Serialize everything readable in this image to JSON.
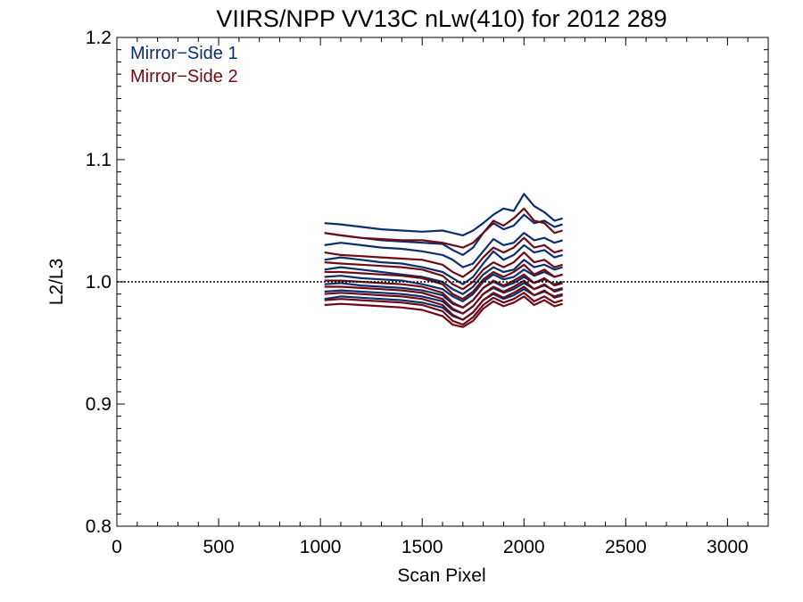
{
  "chart_data": {
    "type": "line",
    "title": "VIIRS/NPP VV13C nLw(410) for 2012 289",
    "xlabel": "Scan Pixel",
    "ylabel": "L2/L3",
    "xlim": [
      0,
      3200
    ],
    "ylim": [
      0.8,
      1.2
    ],
    "xticks": [
      0,
      500,
      1000,
      1500,
      2000,
      2500,
      3000
    ],
    "xtick_labels": [
      "0",
      "500",
      "1000",
      "1500",
      "2000",
      "2500",
      "3000"
    ],
    "yticks": [
      0.8,
      0.9,
      1.0,
      1.1,
      1.2
    ],
    "ytick_labels": [
      "0.8",
      "0.9",
      "1.0",
      "1.1",
      "1.2"
    ],
    "reference_line": 1.0,
    "legend_position": "top-left",
    "legend": [
      {
        "label": "Mirror−Side 1",
        "color": "#0b2f6e"
      },
      {
        "label": "Mirror−Side 2",
        "color": "#6e0b14"
      }
    ],
    "x": [
      1020,
      1100,
      1200,
      1300,
      1400,
      1500,
      1600,
      1650,
      1700,
      1750,
      1800,
      1850,
      1900,
      1950,
      2000,
      2050,
      2100,
      2150,
      2190
    ],
    "series": [
      {
        "group": 1,
        "color": "#0b2f6e",
        "values": [
          1.048,
          1.047,
          1.045,
          1.043,
          1.042,
          1.041,
          1.042,
          1.04,
          1.038,
          1.042,
          1.048,
          1.055,
          1.06,
          1.058,
          1.072,
          1.062,
          1.057,
          1.05,
          1.052
        ]
      },
      {
        "group": 1,
        "color": "#0b2f6e",
        "values": [
          1.04,
          1.038,
          1.036,
          1.034,
          1.033,
          1.032,
          1.031,
          1.026,
          1.022,
          1.028,
          1.04,
          1.048,
          1.043,
          1.046,
          1.055,
          1.048,
          1.05,
          1.045,
          1.047
        ]
      },
      {
        "group": 1,
        "color": "#0b2f6e",
        "values": [
          1.03,
          1.032,
          1.03,
          1.028,
          1.027,
          1.025,
          1.022,
          1.018,
          1.012,
          1.015,
          1.025,
          1.035,
          1.03,
          1.032,
          1.04,
          1.034,
          1.036,
          1.032,
          1.034
        ]
      },
      {
        "group": 1,
        "color": "#0b2f6e",
        "values": [
          1.018,
          1.02,
          1.018,
          1.016,
          1.015,
          1.012,
          1.008,
          1.003,
          0.998,
          1.004,
          1.015,
          1.025,
          1.018,
          1.022,
          1.03,
          1.024,
          1.026,
          1.02,
          1.022
        ]
      },
      {
        "group": 1,
        "color": "#0b2f6e",
        "values": [
          1.01,
          1.012,
          1.01,
          1.008,
          1.006,
          1.004,
          1.0,
          0.994,
          0.99,
          0.996,
          1.006,
          1.012,
          1.008,
          1.01,
          1.018,
          1.012,
          1.014,
          1.01,
          1.012
        ]
      },
      {
        "group": 1,
        "color": "#0b2f6e",
        "values": [
          1.004,
          1.005,
          1.003,
          1.002,
          1.001,
          0.998,
          0.994,
          0.988,
          0.984,
          0.99,
          1.0,
          1.006,
          1.002,
          1.004,
          1.01,
          1.005,
          1.008,
          1.004,
          1.006
        ]
      },
      {
        "group": 1,
        "color": "#0b2f6e",
        "values": [
          0.998,
          0.999,
          0.997,
          0.996,
          0.995,
          0.993,
          0.989,
          0.982,
          0.979,
          0.985,
          0.995,
          1.0,
          0.996,
          0.999,
          1.004,
          0.999,
          1.002,
          0.998,
          1.0
        ]
      },
      {
        "group": 1,
        "color": "#0b2f6e",
        "values": [
          0.992,
          0.993,
          0.992,
          0.991,
          0.99,
          0.988,
          0.984,
          0.977,
          0.974,
          0.98,
          0.99,
          0.995,
          0.991,
          0.994,
          0.999,
          0.994,
          0.997,
          0.993,
          0.995
        ]
      },
      {
        "group": 1,
        "color": "#0b2f6e",
        "values": [
          0.986,
          0.988,
          0.987,
          0.986,
          0.985,
          0.983,
          0.979,
          0.972,
          0.969,
          0.975,
          0.985,
          0.99,
          0.986,
          0.989,
          0.994,
          0.989,
          0.992,
          0.988,
          0.99
        ]
      },
      {
        "group": 2,
        "color": "#6e0b14",
        "values": [
          1.04,
          1.038,
          1.036,
          1.035,
          1.034,
          1.034,
          1.032,
          1.03,
          1.028,
          1.032,
          1.04,
          1.05,
          1.046,
          1.052,
          1.06,
          1.05,
          1.048,
          1.04,
          1.042
        ]
      },
      {
        "group": 2,
        "color": "#6e0b14",
        "values": [
          1.024,
          1.022,
          1.021,
          1.02,
          1.019,
          1.018,
          1.014,
          1.008,
          1.004,
          1.01,
          1.02,
          1.028,
          1.024,
          1.028,
          1.036,
          1.028,
          1.03,
          1.024,
          1.026
        ]
      },
      {
        "group": 2,
        "color": "#6e0b14",
        "values": [
          1.016,
          1.015,
          1.014,
          1.013,
          1.012,
          1.01,
          1.005,
          0.998,
          0.994,
          1.0,
          1.01,
          1.016,
          1.012,
          1.016,
          1.024,
          1.016,
          1.018,
          1.012,
          1.014
        ]
      },
      {
        "group": 2,
        "color": "#6e0b14",
        "values": [
          1.008,
          1.008,
          1.007,
          1.006,
          1.005,
          1.003,
          0.998,
          0.99,
          0.986,
          0.992,
          1.002,
          1.008,
          1.004,
          1.008,
          1.014,
          1.006,
          1.01,
          1.004,
          1.006
        ]
      },
      {
        "group": 2,
        "color": "#6e0b14",
        "values": [
          1.001,
          1.001,
          1.0,
          0.999,
          0.998,
          0.996,
          0.991,
          0.983,
          0.979,
          0.985,
          0.995,
          1.001,
          0.997,
          1.001,
          1.006,
          0.999,
          1.003,
          0.997,
          0.999
        ]
      },
      {
        "group": 2,
        "color": "#6e0b14",
        "values": [
          0.996,
          0.996,
          0.995,
          0.994,
          0.993,
          0.991,
          0.986,
          0.978,
          0.974,
          0.98,
          0.99,
          0.996,
          0.992,
          0.996,
          1.001,
          0.994,
          0.998,
          0.992,
          0.994
        ]
      },
      {
        "group": 2,
        "color": "#6e0b14",
        "values": [
          0.99,
          0.991,
          0.99,
          0.989,
          0.988,
          0.986,
          0.981,
          0.973,
          0.969,
          0.975,
          0.985,
          0.991,
          0.987,
          0.991,
          0.996,
          0.989,
          0.993,
          0.987,
          0.989
        ]
      },
      {
        "group": 2,
        "color": "#6e0b14",
        "values": [
          0.985,
          0.986,
          0.985,
          0.984,
          0.983,
          0.981,
          0.976,
          0.968,
          0.965,
          0.971,
          0.981,
          0.987,
          0.983,
          0.986,
          0.991,
          0.984,
          0.988,
          0.983,
          0.985
        ]
      },
      {
        "group": 2,
        "color": "#6e0b14",
        "values": [
          0.981,
          0.982,
          0.981,
          0.98,
          0.979,
          0.977,
          0.972,
          0.965,
          0.963,
          0.968,
          0.978,
          0.984,
          0.98,
          0.983,
          0.988,
          0.981,
          0.985,
          0.98,
          0.982
        ]
      }
    ]
  }
}
